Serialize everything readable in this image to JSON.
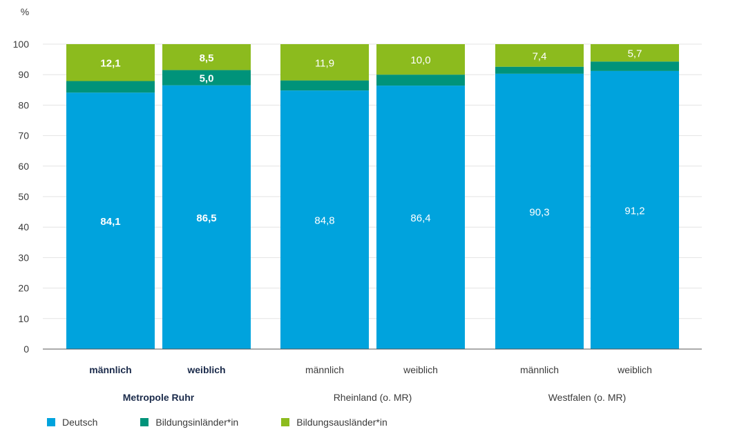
{
  "chart_data": {
    "type": "bar",
    "stacked": true,
    "ylabel": "%",
    "ylim": [
      0,
      100
    ],
    "yticks": [
      0,
      10,
      20,
      30,
      40,
      50,
      60,
      70,
      80,
      90,
      100
    ],
    "grid": true,
    "legend_position": "bottom-left",
    "groups": [
      "Metropole Ruhr",
      "Rheinland (o. MR)",
      "Westfalen (o. MR)"
    ],
    "categories": [
      "männlich",
      "weiblich",
      "männlich",
      "weiblich",
      "männlich",
      "weiblich"
    ],
    "series": [
      {
        "name": "Deutsch",
        "color": "#00a3dd",
        "values": [
          84.1,
          86.5,
          84.8,
          86.4,
          90.3,
          91.2
        ]
      },
      {
        "name": "Bildungsinländer*in",
        "color": "#00937a",
        "values": [
          3.8,
          5.0,
          3.3,
          3.6,
          2.3,
          3.1
        ]
      },
      {
        "name": "Bildungsausländer*in",
        "color": "#8cbb1e",
        "values": [
          12.1,
          8.5,
          11.9,
          10.0,
          7.4,
          5.7
        ]
      }
    ],
    "value_labels": [
      [
        "84,1",
        "86,5",
        "84,8",
        "86,4",
        "90,3",
        "91,2"
      ],
      [
        "",
        "5,0",
        "",
        "",
        "",
        ""
      ],
      [
        "12,1",
        "8,5",
        "11,9",
        "10,0",
        "7,4",
        "5,7"
      ]
    ],
    "bold_group": 0
  }
}
